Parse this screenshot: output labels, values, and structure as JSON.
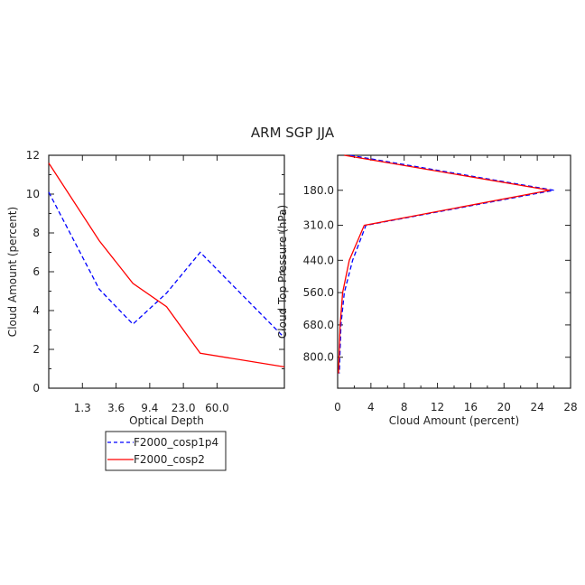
{
  "title": "ARM SGP JJA",
  "chart_data": [
    {
      "type": "line",
      "xlabel": "Optical Depth",
      "ylabel": "Cloud Amount (percent)",
      "x_tick_labels": [
        "1.3",
        "3.6",
        "9.4",
        "23.0",
        "60.0"
      ],
      "y_tick_labels": [
        "0",
        "2",
        "4",
        "6",
        "8",
        "10",
        "12"
      ],
      "ylim": [
        0,
        12
      ],
      "bins": 7,
      "series": [
        {
          "name": "F2000_cosp1p4",
          "color": "#0000ff",
          "dash": true,
          "values": [
            10.1,
            5.1,
            3.3,
            4.9,
            7.0,
            2.6
          ]
        },
        {
          "name": "F2000_cosp2",
          "color": "#ff0000",
          "dash": false,
          "values": [
            11.6,
            7.6,
            5.4,
            4.2,
            1.8,
            1.1
          ]
        }
      ]
    },
    {
      "type": "line",
      "xlabel": "Cloud Amount (percent)",
      "ylabel": "Cloud Top Pressure (hPa)",
      "x_tick_labels": [
        "0",
        "4",
        "8",
        "12",
        "16",
        "20",
        "24",
        "28"
      ],
      "xlim": [
        0,
        28
      ],
      "y_tick_labels": [
        "180.0",
        "310.0",
        "440.0",
        "560.0",
        "680.0",
        "800.0"
      ],
      "ylim": [
        50,
        915
      ],
      "series": [
        {
          "name": "F2000_cosp1p4",
          "color": "#0000ff",
          "dash": true,
          "x": [
            1.5,
            26.0,
            3.4,
            1.8,
            0.8,
            0.4,
            0.2
          ],
          "y": [
            50,
            180,
            310,
            440,
            560,
            680,
            860
          ]
        },
        {
          "name": "F2000_cosp2",
          "color": "#ff0000",
          "dash": false,
          "x": [
            0.8,
            25.5,
            3.2,
            1.4,
            0.6,
            0.3,
            0.1
          ],
          "y": [
            50,
            180,
            310,
            440,
            560,
            680,
            860
          ]
        }
      ]
    }
  ],
  "legend": [
    {
      "label": "F2000_cosp1p4",
      "color": "#0000ff",
      "dash": true
    },
    {
      "label": "F2000_cosp2",
      "color": "#ff0000",
      "dash": false
    }
  ]
}
